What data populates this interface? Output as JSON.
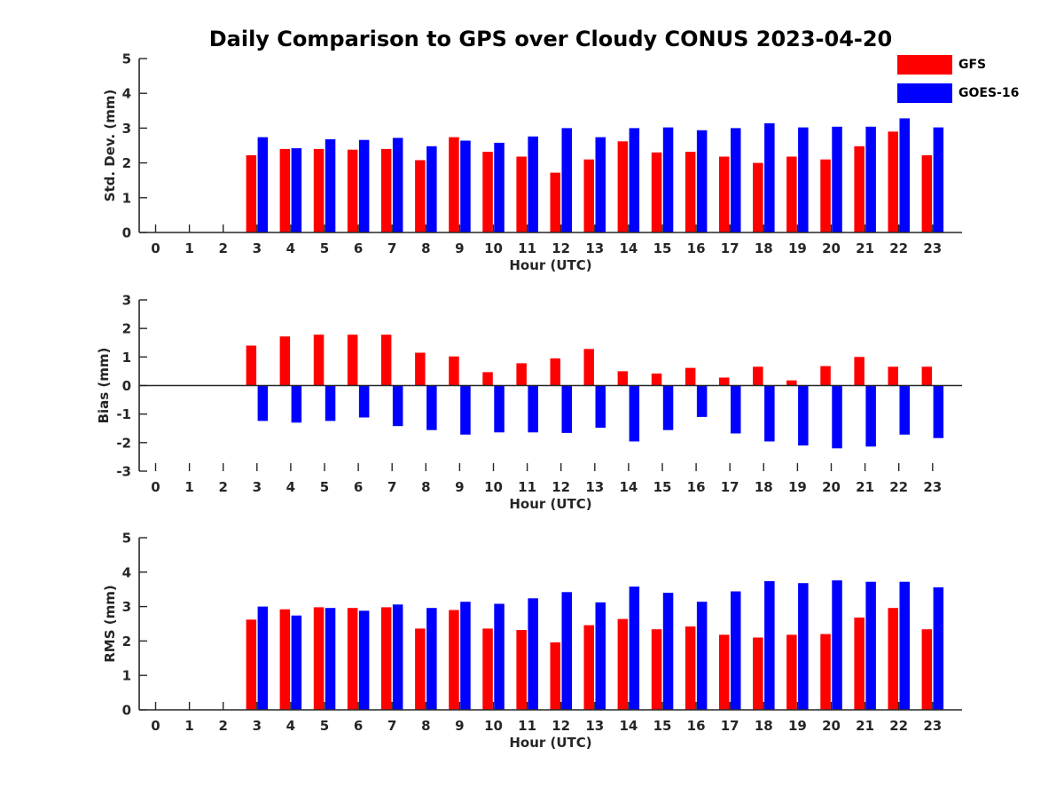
{
  "figure": {
    "title": "Daily Comparison to GPS over Cloudy CONUS 2023-04-20"
  },
  "legend": [
    {
      "name": "GFS",
      "color": "#ff0000"
    },
    {
      "name": "GOES-16",
      "color": "#0000ff"
    }
  ],
  "chart_data": [
    {
      "type": "bar",
      "ylabel": "Std. Dev. (mm)",
      "xlabel": "Hour (UTC)",
      "ylim": [
        0,
        5
      ],
      "yticks": [
        "0",
        "1",
        "2",
        "3",
        "4",
        "5"
      ],
      "categories": [
        "0",
        "1",
        "2",
        "3",
        "4",
        "5",
        "6",
        "7",
        "8",
        "9",
        "10",
        "11",
        "12",
        "13",
        "14",
        "15",
        "16",
        "17",
        "18",
        "19",
        "20",
        "21",
        "22",
        "23"
      ],
      "series": [
        {
          "name": "GFS",
          "color": "#ff0000",
          "values": [
            null,
            null,
            null,
            2.22,
            2.4,
            2.4,
            2.38,
            2.4,
            2.08,
            2.74,
            2.32,
            2.18,
            1.72,
            2.1,
            2.62,
            2.3,
            2.32,
            2.18,
            2.0,
            2.18,
            2.1,
            2.48,
            2.9,
            2.22
          ]
        },
        {
          "name": "GOES-16",
          "color": "#0000ff",
          "values": [
            null,
            null,
            null,
            2.74,
            2.42,
            2.68,
            2.66,
            2.72,
            2.48,
            2.64,
            2.58,
            2.76,
            3.0,
            2.74,
            3.0,
            3.02,
            2.94,
            3.0,
            3.14,
            3.02,
            3.04,
            3.04,
            3.28,
            3.02
          ]
        }
      ]
    },
    {
      "type": "bar",
      "ylabel": "Bias (mm)",
      "xlabel": "Hour (UTC)",
      "ylim": [
        -3,
        3
      ],
      "yticks": [
        "-3",
        "-2",
        "-1",
        "0",
        "1",
        "2",
        "3"
      ],
      "categories": [
        "0",
        "1",
        "2",
        "3",
        "4",
        "5",
        "6",
        "7",
        "8",
        "9",
        "10",
        "11",
        "12",
        "13",
        "14",
        "15",
        "16",
        "17",
        "18",
        "19",
        "20",
        "21",
        "22",
        "23"
      ],
      "series": [
        {
          "name": "GFS",
          "color": "#ff0000",
          "values": [
            null,
            null,
            null,
            1.4,
            1.72,
            1.78,
            1.78,
            1.78,
            1.15,
            1.02,
            0.47,
            0.78,
            0.95,
            1.28,
            0.5,
            0.42,
            0.62,
            0.28,
            0.66,
            0.18,
            0.68,
            1.0,
            0.66,
            0.66
          ]
        },
        {
          "name": "GOES-16",
          "color": "#0000ff",
          "values": [
            null,
            null,
            null,
            -1.24,
            -1.3,
            -1.24,
            -1.12,
            -1.42,
            -1.56,
            -1.72,
            -1.64,
            -1.64,
            -1.66,
            -1.48,
            -1.96,
            -1.56,
            -1.1,
            -1.68,
            -1.96,
            -2.1,
            -2.2,
            -2.14,
            -1.72,
            -1.84
          ]
        }
      ]
    },
    {
      "type": "bar",
      "ylabel": "RMS (mm)",
      "xlabel": "Hour (UTC)",
      "ylim": [
        0,
        5
      ],
      "yticks": [
        "0",
        "1",
        "2",
        "3",
        "4",
        "5"
      ],
      "categories": [
        "0",
        "1",
        "2",
        "3",
        "4",
        "5",
        "6",
        "7",
        "8",
        "9",
        "10",
        "11",
        "12",
        "13",
        "14",
        "15",
        "16",
        "17",
        "18",
        "19",
        "20",
        "21",
        "22",
        "23"
      ],
      "series": [
        {
          "name": "GFS",
          "color": "#ff0000",
          "values": [
            null,
            null,
            null,
            2.62,
            2.92,
            2.98,
            2.96,
            2.98,
            2.36,
            2.9,
            2.36,
            2.32,
            1.96,
            2.46,
            2.64,
            2.34,
            2.42,
            2.18,
            2.1,
            2.18,
            2.2,
            2.68,
            2.96,
            2.34
          ]
        },
        {
          "name": "GOES-16",
          "color": "#0000ff",
          "values": [
            null,
            null,
            null,
            3.0,
            2.74,
            2.96,
            2.88,
            3.06,
            2.96,
            3.14,
            3.08,
            3.24,
            3.42,
            3.12,
            3.58,
            3.4,
            3.14,
            3.44,
            3.74,
            3.68,
            3.76,
            3.72,
            3.72,
            3.56
          ]
        }
      ]
    }
  ]
}
